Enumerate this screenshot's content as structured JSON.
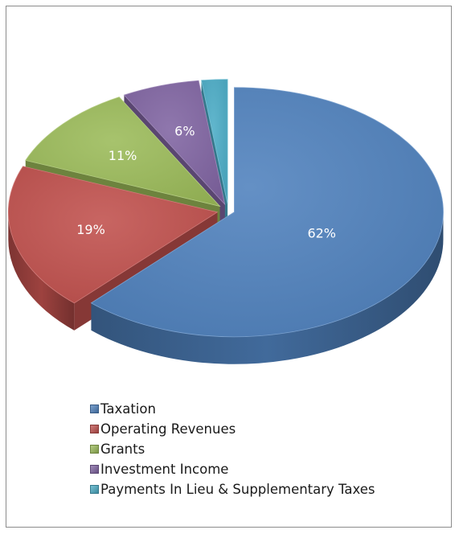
{
  "chart_data": {
    "type": "pie",
    "title": "",
    "slices": [
      {
        "name": "Taxation",
        "value": 62,
        "label": "62%",
        "color": "#4f81bd"
      },
      {
        "name": "Operating Revenues",
        "value": 19,
        "label": "19%",
        "color": "#c0504d"
      },
      {
        "name": "Grants",
        "value": 11,
        "label": "11%",
        "color": "#9bbb59"
      },
      {
        "name": "Investment Income",
        "value": 6,
        "label": "6%",
        "color": "#8064a2"
      },
      {
        "name": "Payments In Lieu & Supplementary Taxes",
        "value": 2,
        "label": "",
        "color": "#4bacc6"
      }
    ],
    "legend_position": "bottom",
    "style": "3d-exploded"
  }
}
